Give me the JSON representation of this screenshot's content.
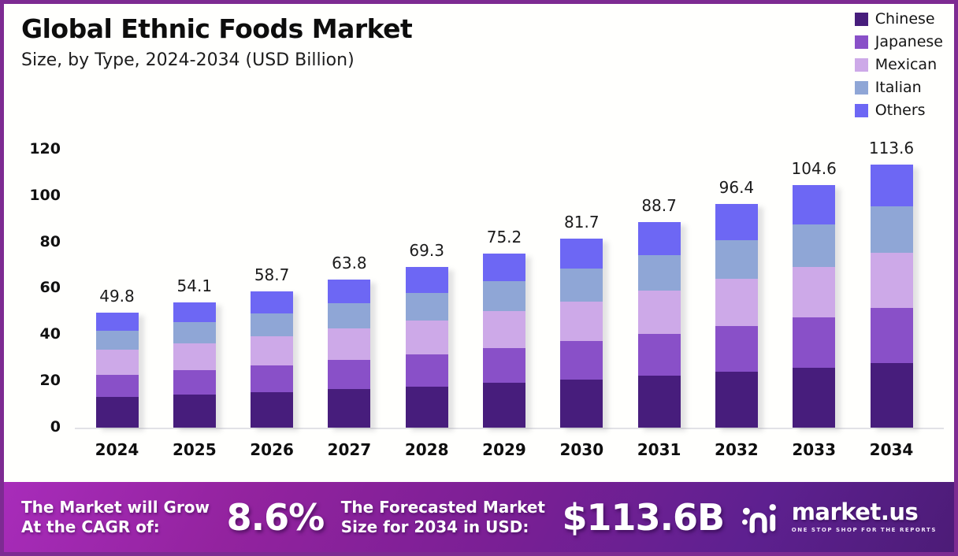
{
  "header": {
    "title": "Global Ethnic Foods Market",
    "subtitle": "Size, by Type, 2024-2034 (USD Billion)"
  },
  "legend": [
    {
      "label": "Chinese",
      "color": "#471d7c"
    },
    {
      "label": "Japanese",
      "color": "#8950c8"
    },
    {
      "label": "Mexican",
      "color": "#cda9e8"
    },
    {
      "label": "Italian",
      "color": "#8fa6d6"
    },
    {
      "label": "Others",
      "color": "#6d67f4"
    }
  ],
  "chart_data": {
    "type": "bar",
    "stacked": true,
    "title": "Global Ethnic Foods Market Size, by Type, 2024-2034 (USD Billion)",
    "categories": [
      "2024",
      "2025",
      "2026",
      "2027",
      "2028",
      "2029",
      "2030",
      "2031",
      "2032",
      "2033",
      "2034"
    ],
    "series": [
      {
        "name": "Chinese",
        "color": "#471d7c",
        "values": [
          13.2,
          14.2,
          15.3,
          16.5,
          17.8,
          19.2,
          20.6,
          22.3,
          24.0,
          25.8,
          27.8
        ]
      },
      {
        "name": "Japanese",
        "color": "#8950c8",
        "values": [
          9.7,
          10.6,
          11.6,
          12.7,
          13.9,
          15.2,
          16.7,
          18.2,
          20.0,
          21.8,
          23.9
        ]
      },
      {
        "name": "Mexican",
        "color": "#cda9e8",
        "values": [
          10.6,
          11.5,
          12.4,
          13.5,
          14.6,
          15.8,
          17.1,
          18.6,
          20.1,
          21.8,
          23.6
        ]
      },
      {
        "name": "Italian",
        "color": "#8fa6d6",
        "values": [
          8.4,
          9.2,
          10.0,
          10.9,
          11.9,
          13.0,
          14.2,
          15.5,
          16.9,
          18.4,
          20.1
        ]
      },
      {
        "name": "Others",
        "color": "#6d67f4",
        "values": [
          7.9,
          8.6,
          9.4,
          10.2,
          11.1,
          12.0,
          13.1,
          14.1,
          15.4,
          16.8,
          18.2
        ]
      }
    ],
    "totals": [
      49.8,
      54.1,
      58.7,
      63.8,
      69.3,
      75.2,
      81.7,
      88.7,
      96.4,
      104.6,
      113.6
    ],
    "yticks": [
      0,
      20,
      40,
      60,
      80,
      100,
      120
    ],
    "ylim": [
      0,
      120
    ],
    "grid": false,
    "legend_position": "top-right",
    "unit": "USD Billion"
  },
  "footer": {
    "cagr_label_line1": "The Market will Grow",
    "cagr_label_line2": "At the CAGR of:",
    "cagr_value": "8.6%",
    "forecast_label_line1": "The Forecasted Market",
    "forecast_label_line2": "Size for 2034 in USD:",
    "forecast_value": "$113.6B",
    "brand_name": "market.us",
    "brand_tagline": "ONE STOP SHOP FOR THE REPORTS"
  },
  "colors": {
    "frame_border": "#7d2b92",
    "banner_gradient_start": "#a82cba",
    "banner_gradient_end": "#4c1c77",
    "axis_line": "#e2e2e6",
    "text": "#0d0d0d"
  }
}
